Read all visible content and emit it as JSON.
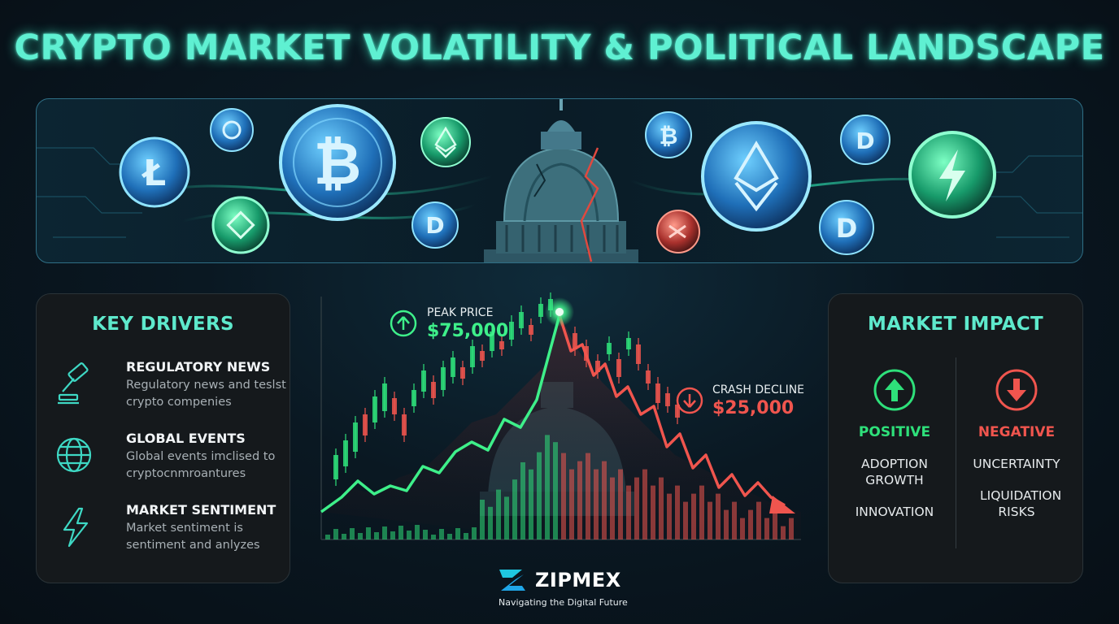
{
  "title": "CRYPTO MARKET VOLATILITY & POLITICAL LANDSCAPE",
  "key_drivers": {
    "heading": "KEY DRIVERS",
    "items": [
      {
        "title": "REGULATORY NEWS",
        "desc": "Regulatory news and teslst crypto compenies",
        "icon": "gavel-icon"
      },
      {
        "title": "GLOBAL EVENTS",
        "desc": "Global events imclised to cryptocnmroantures",
        "icon": "globe-icon"
      },
      {
        "title": "MARKET SENTIMENT",
        "desc": "Market sentiment is sentiment and anlyzes",
        "icon": "lightning-icon"
      }
    ]
  },
  "chart_annotations": {
    "peak_label": "PEAK PRICE",
    "peak_value": "$75,000",
    "crash_label": "CRASH DECLINE",
    "crash_value": "$25,000"
  },
  "market_impact": {
    "heading": "MARKET IMPACT",
    "positive": {
      "label": "POSITIVE",
      "items": [
        "ADOPTION GROWTH",
        "INNOVATION"
      ]
    },
    "negative": {
      "label": "NEGATIVE",
      "items": [
        "UNCERTAINTY",
        "LIQUIDATION RISKS"
      ]
    }
  },
  "brand": {
    "name": "ZIPMEX",
    "tagline": "Navigating the Digital Future"
  },
  "colors": {
    "accent": "#5ff0d2",
    "positive": "#2ee07a",
    "negative": "#f0554e",
    "panel": "#15191c"
  }
}
